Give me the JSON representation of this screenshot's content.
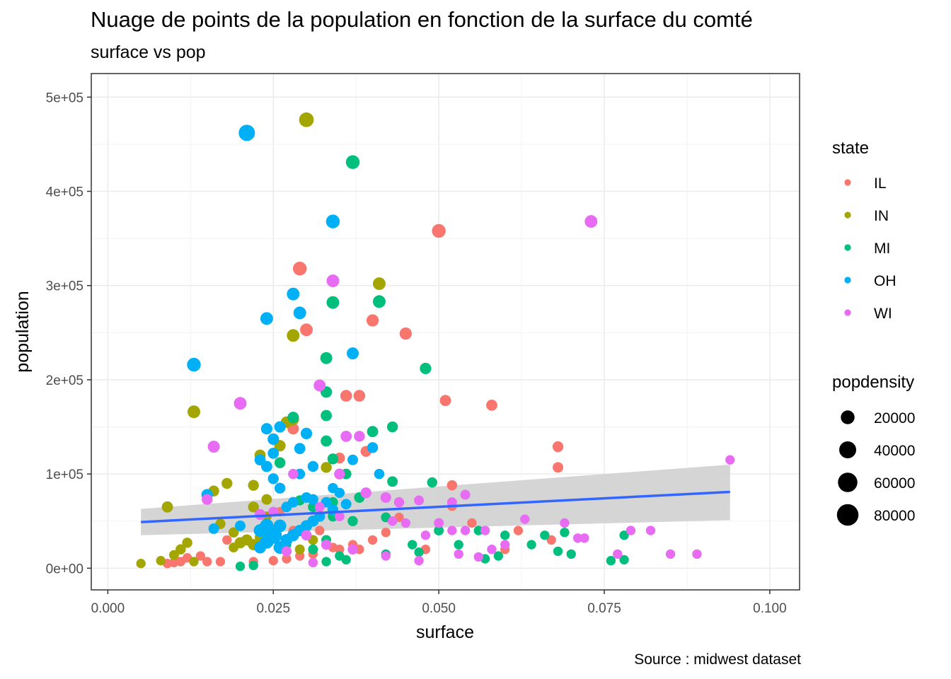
{
  "chart_data": {
    "type": "scatter",
    "title": "Nuage de points de la population en fonction de la surface du comté",
    "subtitle": "surface vs pop",
    "caption": "Source : midwest dataset",
    "xlabel": "surface",
    "ylabel": "population",
    "xlim": [
      -0.0025,
      0.1045
    ],
    "ylim": [
      -23000,
      525000
    ],
    "x_ticks": [
      0.0,
      0.025,
      0.05,
      0.075,
      0.1
    ],
    "x_tick_labels": [
      "0.000",
      "0.025",
      "0.050",
      "0.075",
      "0.100"
    ],
    "y_ticks": [
      0,
      100000,
      200000,
      300000,
      400000,
      500000
    ],
    "y_tick_labels": [
      "0e+00",
      "1e+05",
      "2e+05",
      "3e+05",
      "4e+05",
      "5e+05"
    ],
    "grid": true,
    "legend_placement": "right",
    "color_legend": {
      "title": "state",
      "entries": [
        {
          "label": "IL",
          "color": "#F8766D"
        },
        {
          "label": "IN",
          "color": "#A3A500"
        },
        {
          "label": "MI",
          "color": "#00BF7D"
        },
        {
          "label": "OH",
          "color": "#00B0F6"
        },
        {
          "label": "WI",
          "color": "#E76BF3"
        }
      ]
    },
    "size_legend": {
      "title": "popdensity",
      "labels": [
        "20000",
        "40000",
        "60000",
        "80000"
      ],
      "values": [
        20000,
        40000,
        60000,
        80000
      ]
    },
    "smooth_line": {
      "x": [
        0.005,
        0.094
      ],
      "y": [
        49000,
        81000
      ],
      "ribbon_lower": [
        35000,
        51000
      ],
      "ribbon_upper": [
        63000,
        110000
      ],
      "line_color": "#3366FF",
      "ribbon_color": "#D3D3D3"
    },
    "series": [
      {
        "name": "IL",
        "color": "#F8766D",
        "points": [
          [
            0.05,
            358000,
            20000
          ],
          [
            0.029,
            318000,
            20000
          ],
          [
            0.03,
            253000,
            15000
          ],
          [
            0.04,
            263000,
            13000
          ],
          [
            0.045,
            249000,
            13000
          ],
          [
            0.036,
            183000,
            11000
          ],
          [
            0.038,
            183000,
            11000
          ],
          [
            0.051,
            178000,
            9000
          ],
          [
            0.058,
            173000,
            9000
          ],
          [
            0.068,
            129000,
            8000
          ],
          [
            0.068,
            107000,
            7000
          ],
          [
            0.028,
            148000,
            10000
          ],
          [
            0.035,
            117000,
            8000
          ],
          [
            0.039,
            124000,
            8000
          ],
          [
            0.052,
            88000,
            6000
          ],
          [
            0.052,
            66000,
            5000
          ],
          [
            0.062,
            40000,
            4000
          ],
          [
            0.067,
            30000,
            4000
          ],
          [
            0.055,
            48000,
            4000
          ],
          [
            0.044,
            54000,
            4000
          ],
          [
            0.042,
            38000,
            4000
          ],
          [
            0.04,
            30000,
            4000
          ],
          [
            0.037,
            25000,
            4000
          ],
          [
            0.034,
            22000,
            4000
          ],
          [
            0.031,
            15000,
            4000
          ],
          [
            0.029,
            13000,
            4000
          ],
          [
            0.027,
            10000,
            4000
          ],
          [
            0.025,
            8000,
            4000
          ],
          [
            0.022,
            7000,
            4000
          ],
          [
            0.018,
            30000,
            4000
          ],
          [
            0.017,
            7000,
            4000
          ],
          [
            0.015,
            7000,
            4000
          ],
          [
            0.014,
            13000,
            4000
          ],
          [
            0.012,
            11000,
            4000
          ],
          [
            0.01,
            6000,
            4000
          ],
          [
            0.009,
            5000,
            4000
          ],
          [
            0.011,
            7000,
            4000
          ],
          [
            0.026,
            60000,
            4000
          ],
          [
            0.028,
            40000,
            4000
          ],
          [
            0.032,
            40000,
            4000
          ],
          [
            0.035,
            20000,
            4000
          ],
          [
            0.038,
            20000,
            4000
          ],
          [
            0.048,
            20000,
            4000
          ],
          [
            0.06,
            20000,
            4000
          ]
        ]
      },
      {
        "name": "IN",
        "color": "#A3A500",
        "points": [
          [
            0.03,
            476000,
            25000
          ],
          [
            0.041,
            302000,
            15000
          ],
          [
            0.028,
            247000,
            15000
          ],
          [
            0.013,
            166000,
            15000
          ],
          [
            0.028,
            158000,
            11000
          ],
          [
            0.027,
            155000,
            10000
          ],
          [
            0.026,
            130000,
            10000
          ],
          [
            0.023,
            120000,
            9000
          ],
          [
            0.026,
            112000,
            8000
          ],
          [
            0.033,
            107000,
            8000
          ],
          [
            0.009,
            65000,
            9000
          ],
          [
            0.016,
            82000,
            8000
          ],
          [
            0.018,
            90000,
            8000
          ],
          [
            0.022,
            88000,
            8000
          ],
          [
            0.022,
            65000,
            8000
          ],
          [
            0.024,
            73000,
            7000
          ],
          [
            0.017,
            47000,
            6000
          ],
          [
            0.019,
            38000,
            6000
          ],
          [
            0.021,
            30000,
            9000
          ],
          [
            0.022,
            25000,
            9000
          ],
          [
            0.02,
            27000,
            9000
          ],
          [
            0.023,
            33000,
            7000
          ],
          [
            0.012,
            27000,
            6000
          ],
          [
            0.011,
            20000,
            6000
          ],
          [
            0.01,
            14000,
            5000
          ],
          [
            0.008,
            8000,
            4000
          ],
          [
            0.005,
            5000,
            4000
          ],
          [
            0.013,
            7000,
            4000
          ],
          [
            0.019,
            22000,
            5000
          ],
          [
            0.024,
            55000,
            5000
          ],
          [
            0.029,
            20000,
            5000
          ],
          [
            0.031,
            30000,
            5000
          ]
        ]
      },
      {
        "name": "MI",
        "color": "#00BF7D",
        "points": [
          [
            0.037,
            431000,
            20000
          ],
          [
            0.034,
            282000,
            15000
          ],
          [
            0.041,
            283000,
            15000
          ],
          [
            0.033,
            223000,
            12000
          ],
          [
            0.048,
            212000,
            10000
          ],
          [
            0.033,
            187000,
            10000
          ],
          [
            0.028,
            160000,
            10000
          ],
          [
            0.033,
            162000,
            9000
          ],
          [
            0.033,
            135000,
            9000
          ],
          [
            0.04,
            145000,
            9000
          ],
          [
            0.043,
            150000,
            8000
          ],
          [
            0.026,
            112000,
            8000
          ],
          [
            0.034,
            116000,
            8000
          ],
          [
            0.036,
            100000,
            7000
          ],
          [
            0.043,
            92000,
            7000
          ],
          [
            0.049,
            91000,
            6000
          ],
          [
            0.038,
            75000,
            7000
          ],
          [
            0.034,
            70000,
            6000
          ],
          [
            0.029,
            72000,
            6000
          ],
          [
            0.031,
            65000,
            6000
          ],
          [
            0.034,
            55000,
            6000
          ],
          [
            0.037,
            50000,
            6000
          ],
          [
            0.042,
            54000,
            5000
          ],
          [
            0.05,
            40000,
            5000
          ],
          [
            0.056,
            40000,
            4000
          ],
          [
            0.06,
            35000,
            4000
          ],
          [
            0.064,
            25000,
            4000
          ],
          [
            0.066,
            35000,
            4000
          ],
          [
            0.069,
            38000,
            4000
          ],
          [
            0.068,
            18000,
            4000
          ],
          [
            0.07,
            15000,
            4000
          ],
          [
            0.076,
            8000,
            4000
          ],
          [
            0.078,
            35000,
            4000
          ],
          [
            0.078,
            9000,
            4000
          ],
          [
            0.033,
            30000,
            5000
          ],
          [
            0.031,
            20000,
            5000
          ],
          [
            0.035,
            13000,
            4000
          ],
          [
            0.036,
            9000,
            4000
          ],
          [
            0.033,
            7000,
            4000
          ],
          [
            0.042,
            15000,
            4000
          ],
          [
            0.046,
            25000,
            4000
          ],
          [
            0.047,
            17000,
            4000
          ],
          [
            0.053,
            25000,
            4000
          ],
          [
            0.057,
            10000,
            4000
          ],
          [
            0.059,
            13000,
            4000
          ],
          [
            0.022,
            3000,
            4000
          ],
          [
            0.02,
            2000,
            4000
          ],
          [
            0.027,
            25000,
            4000
          ]
        ]
      },
      {
        "name": "OH",
        "color": "#00B0F6",
        "points": [
          [
            0.021,
            462000,
            35000
          ],
          [
            0.034,
            368000,
            20000
          ],
          [
            0.028,
            291000,
            15000
          ],
          [
            0.029,
            271000,
            15000
          ],
          [
            0.024,
            265000,
            15000
          ],
          [
            0.013,
            216000,
            20000
          ],
          [
            0.037,
            228000,
            12000
          ],
          [
            0.024,
            148000,
            10000
          ],
          [
            0.026,
            150000,
            10000
          ],
          [
            0.03,
            143000,
            10000
          ],
          [
            0.025,
            137000,
            10000
          ],
          [
            0.025,
            122000,
            9000
          ],
          [
            0.029,
            127000,
            9000
          ],
          [
            0.023,
            115000,
            9000
          ],
          [
            0.024,
            108000,
            9000
          ],
          [
            0.031,
            108000,
            8000
          ],
          [
            0.04,
            128000,
            8000
          ],
          [
            0.037,
            115000,
            7000
          ],
          [
            0.041,
            100000,
            6000
          ],
          [
            0.015,
            78000,
            10000
          ],
          [
            0.029,
            100000,
            7000
          ],
          [
            0.034,
            85000,
            6000
          ],
          [
            0.035,
            80000,
            6000
          ],
          [
            0.025,
            95000,
            8000
          ],
          [
            0.026,
            85000,
            8000
          ],
          [
            0.03,
            75000,
            7000
          ],
          [
            0.031,
            73000,
            7000
          ],
          [
            0.033,
            70000,
            7000
          ],
          [
            0.028,
            70000,
            7000
          ],
          [
            0.027,
            65000,
            7000
          ],
          [
            0.025,
            35000,
            40000
          ],
          [
            0.024,
            45000,
            20000
          ],
          [
            0.026,
            45000,
            15000
          ],
          [
            0.023,
            40000,
            15000
          ],
          [
            0.024,
            28000,
            20000
          ],
          [
            0.026,
            22000,
            15000
          ],
          [
            0.023,
            22000,
            12000
          ],
          [
            0.027,
            30000,
            12000
          ],
          [
            0.028,
            35000,
            12000
          ],
          [
            0.029,
            40000,
            10000
          ],
          [
            0.03,
            45000,
            10000
          ],
          [
            0.031,
            50000,
            9000
          ],
          [
            0.032,
            55000,
            8000
          ],
          [
            0.034,
            62000,
            8000
          ],
          [
            0.036,
            68000,
            7000
          ],
          [
            0.016,
            42000,
            7000
          ],
          [
            0.02,
            45000,
            7000
          ]
        ]
      },
      {
        "name": "WI",
        "color": "#E76BF3",
        "points": [
          [
            0.073,
            368000,
            15000
          ],
          [
            0.034,
            305000,
            15000
          ],
          [
            0.032,
            194000,
            12000
          ],
          [
            0.02,
            175000,
            15000
          ],
          [
            0.016,
            129000,
            12000
          ],
          [
            0.036,
            140000,
            9000
          ],
          [
            0.038,
            140000,
            8000
          ],
          [
            0.035,
            100000,
            8000
          ],
          [
            0.039,
            80000,
            8000
          ],
          [
            0.042,
            75000,
            7000
          ],
          [
            0.044,
            70000,
            6000
          ],
          [
            0.047,
            72000,
            5000
          ],
          [
            0.052,
            70000,
            5000
          ],
          [
            0.054,
            78000,
            5000
          ],
          [
            0.05,
            48000,
            5000
          ],
          [
            0.045,
            48000,
            4000
          ],
          [
            0.048,
            35000,
            4000
          ],
          [
            0.052,
            40000,
            4000
          ],
          [
            0.054,
            40000,
            4000
          ],
          [
            0.057,
            40000,
            4000
          ],
          [
            0.058,
            20000,
            4000
          ],
          [
            0.06,
            25000,
            4000
          ],
          [
            0.063,
            52000,
            4000
          ],
          [
            0.069,
            48000,
            4000
          ],
          [
            0.071,
            32000,
            4000
          ],
          [
            0.072,
            32000,
            4000
          ],
          [
            0.079,
            40000,
            4000
          ],
          [
            0.082,
            40000,
            4000
          ],
          [
            0.094,
            115000,
            4000
          ],
          [
            0.089,
            15000,
            4000
          ],
          [
            0.085,
            15000,
            4000
          ],
          [
            0.077,
            15000,
            4000
          ],
          [
            0.015,
            73000,
            8000
          ],
          [
            0.023,
            57000,
            8000
          ],
          [
            0.03,
            35000,
            7000
          ],
          [
            0.033,
            25000,
            6000
          ],
          [
            0.037,
            20000,
            6000
          ],
          [
            0.027,
            18000,
            6000
          ],
          [
            0.031,
            6000,
            4000
          ],
          [
            0.042,
            13000,
            4000
          ],
          [
            0.047,
            8000,
            4000
          ],
          [
            0.053,
            15000,
            4000
          ],
          [
            0.056,
            12000,
            4000
          ],
          [
            0.043,
            50000,
            4000
          ],
          [
            0.035,
            55000,
            5000
          ],
          [
            0.032,
            65000,
            5000
          ],
          [
            0.028,
            100000,
            6000
          ],
          [
            0.025,
            60000,
            5000
          ]
        ]
      }
    ]
  }
}
